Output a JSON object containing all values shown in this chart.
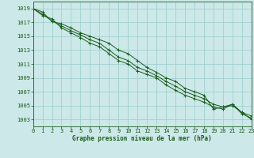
{
  "title": "Graphe pression niveau de la mer (hPa)",
  "background_color": "#cce8e8",
  "grid_color": "#99cccc",
  "line_color": "#1a5c1a",
  "xlim": [
    0,
    23
  ],
  "ylim": [
    1002,
    1020
  ],
  "yticks": [
    1003,
    1005,
    1007,
    1009,
    1011,
    1013,
    1015,
    1017,
    1019
  ],
  "xticks": [
    0,
    1,
    2,
    3,
    4,
    5,
    6,
    7,
    8,
    9,
    10,
    11,
    12,
    13,
    14,
    15,
    16,
    17,
    18,
    19,
    20,
    21,
    22,
    23
  ],
  "series": [
    [
      1019,
      1018.5,
      1017.1,
      1016.8,
      1016.2,
      1015.5,
      1015.0,
      1014.5,
      1014.0,
      1013.0,
      1012.5,
      1011.5,
      1010.5,
      1009.8,
      1009.0,
      1008.5,
      1007.5,
      1007.0,
      1006.5,
      1004.5,
      1004.8,
      1005.0,
      1004.0,
      1003.0
    ],
    [
      1019,
      1018.2,
      1017.2,
      1016.5,
      1015.8,
      1015.2,
      1014.5,
      1014.0,
      1013.0,
      1012.0,
      1011.5,
      1010.5,
      1010.0,
      1009.3,
      1008.5,
      1007.8,
      1007.0,
      1006.5,
      1006.0,
      1005.2,
      1004.8,
      1005.2,
      1003.8,
      1003.2
    ],
    [
      1019,
      1018.0,
      1017.5,
      1016.2,
      1015.5,
      1014.8,
      1014.0,
      1013.5,
      1012.5,
      1011.5,
      1011.0,
      1010.0,
      1009.5,
      1009.0,
      1008.0,
      1007.2,
      1006.5,
      1006.0,
      1005.5,
      1004.8,
      1004.5,
      1005.2,
      1004.0,
      1003.5
    ]
  ],
  "xlabel_fontsize": 5.5,
  "ylabel_fontsize": 5.5,
  "tick_fontsize": 5.0,
  "linewidth": 0.7,
  "markersize": 2.5
}
